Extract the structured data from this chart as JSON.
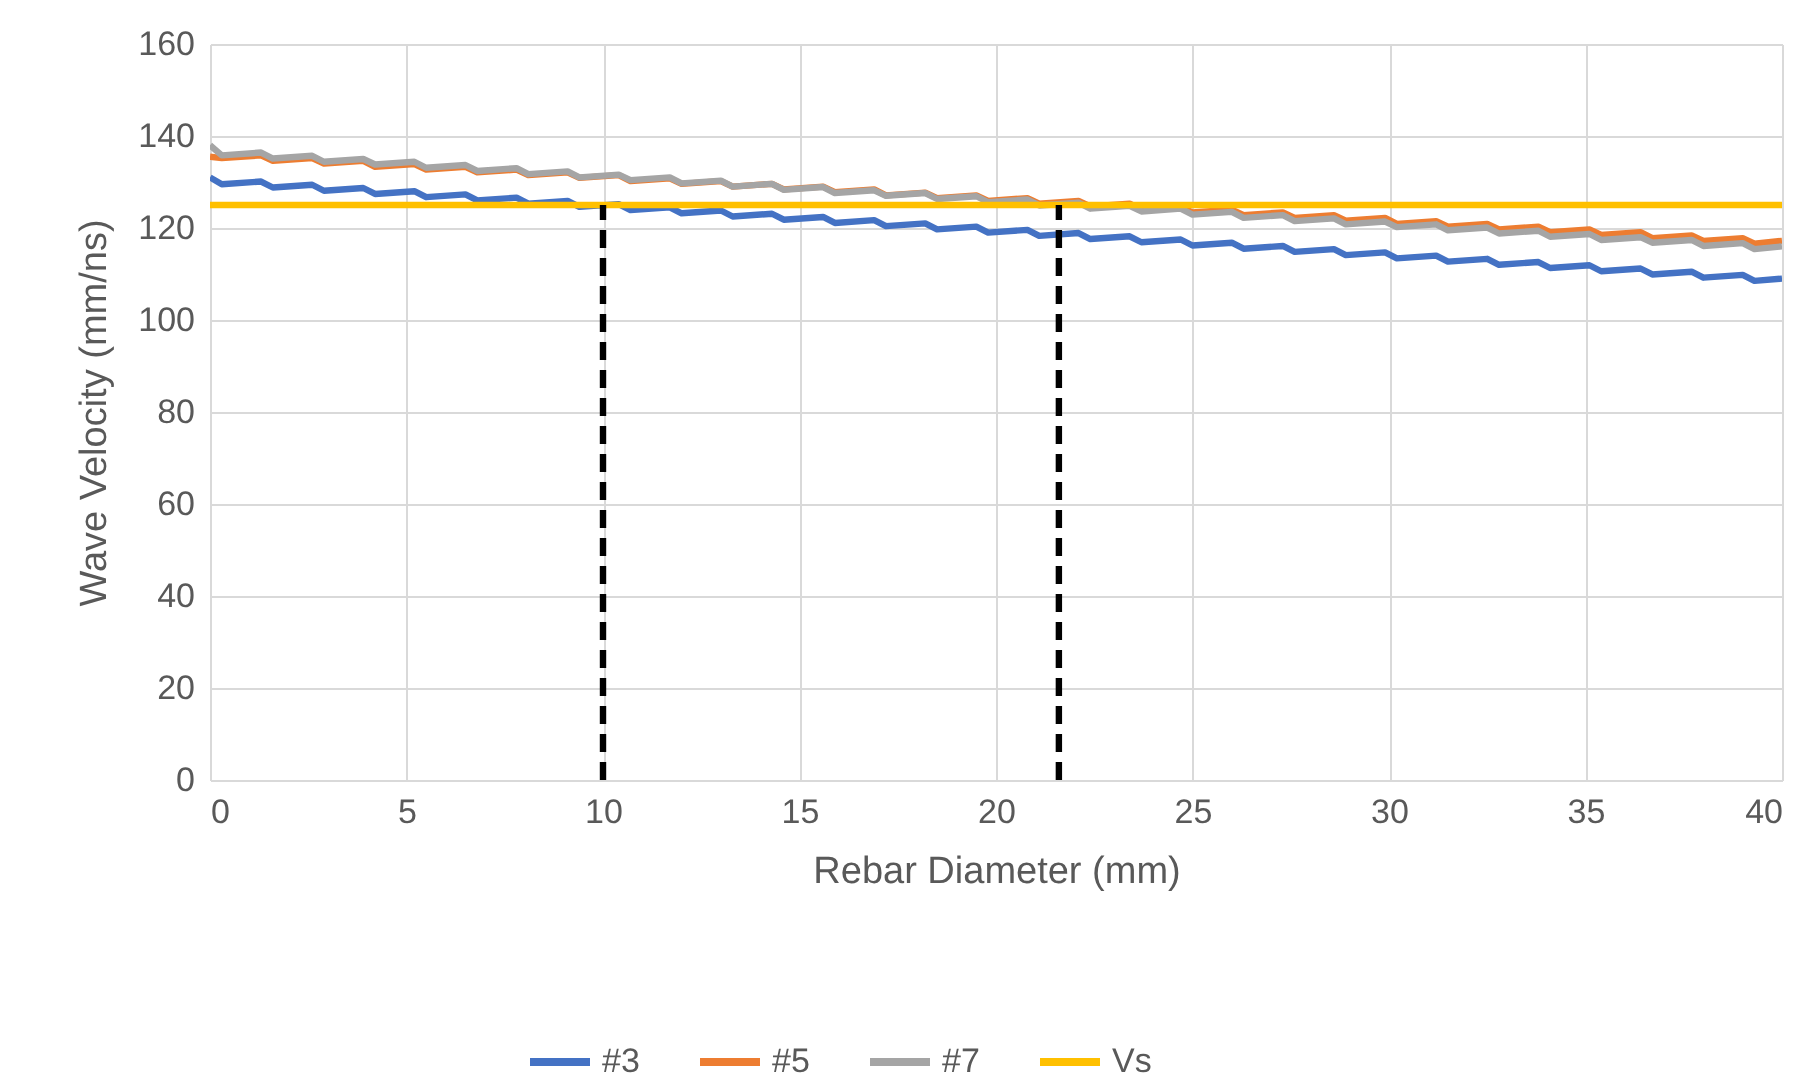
{
  "chart_data": {
    "type": "line",
    "xlabel": "Rebar Diameter (mm)",
    "ylabel": "Wave Velocity (mm/ns)",
    "xlim": [
      0,
      40
    ],
    "xticks": [
      0,
      5,
      10,
      15,
      20,
      25,
      30,
      35,
      40
    ],
    "ylim": [
      0,
      160
    ],
    "yticks": [
      0,
      20,
      40,
      60,
      80,
      100,
      120,
      140,
      160
    ],
    "grid": true,
    "legend": "bottom",
    "line_style": "solid",
    "x": [
      0,
      0.3,
      1.3,
      1.6,
      2.6,
      2.9,
      3.9,
      4.2,
      5.2,
      5.5,
      6.5,
      6.8,
      7.8,
      8.1,
      9.1,
      9.4,
      10.4,
      10.7,
      11.7,
      12,
      13,
      13.3,
      14.3,
      14.6,
      15.6,
      15.9,
      16.9,
      17.2,
      18.2,
      18.5,
      19.5,
      19.8,
      20.8,
      21.1,
      22.1,
      22.4,
      23.4,
      23.7,
      24.7,
      25,
      26,
      26.3,
      27.3,
      27.6,
      28.6,
      28.9,
      29.9,
      30.2,
      31.2,
      31.5,
      32.5,
      32.8,
      33.8,
      34.1,
      35.1,
      35.4,
      36.4,
      36.7,
      37.7,
      38,
      39,
      39.3,
      40
    ],
    "series": [
      {
        "name": "#3",
        "color": "#4472c4",
        "values": [
          131,
          129.5,
          130.1,
          128.8,
          129.4,
          128.1,
          128.7,
          127.4,
          128.0,
          126.7,
          127.3,
          126.0,
          126.6,
          125.3,
          125.9,
          124.6,
          125.2,
          123.9,
          124.5,
          123.2,
          123.8,
          122.5,
          123.1,
          121.8,
          122.4,
          121.1,
          121.7,
          120.4,
          121.0,
          119.7,
          120.3,
          119.0,
          119.6,
          118.3,
          118.9,
          117.6,
          118.2,
          116.9,
          117.5,
          116.2,
          116.8,
          115.5,
          116.1,
          114.8,
          115.4,
          114.1,
          114.7,
          113.4,
          114.0,
          112.7,
          113.3,
          112.0,
          112.6,
          111.3,
          111.9,
          110.6,
          111.2,
          109.9,
          110.5,
          109.2,
          109.8,
          108.5,
          109.0
        ]
      },
      {
        "name": "#5",
        "color": "#ed7d31",
        "values": [
          135.5,
          135.2,
          135.8,
          134.6,
          135.2,
          134.0,
          134.6,
          133.3,
          133.9,
          132.7,
          133.3,
          132.1,
          132.7,
          131.5,
          132.1,
          130.9,
          131.5,
          130.2,
          130.8,
          129.6,
          130.2,
          129.0,
          129.6,
          128.4,
          129.0,
          127.8,
          128.4,
          127.1,
          127.7,
          126.5,
          127.1,
          125.9,
          126.5,
          125.3,
          125.9,
          124.7,
          125.3,
          124.0,
          124.6,
          123.4,
          124.0,
          122.8,
          123.4,
          122.2,
          122.8,
          121.6,
          122.2,
          120.9,
          121.5,
          120.3,
          120.9,
          119.7,
          120.3,
          119.1,
          119.7,
          118.5,
          119.1,
          117.8,
          118.4,
          117.2,
          117.8,
          116.6,
          117.2
        ]
      },
      {
        "name": "#7",
        "color": "#a5a5a5",
        "values": [
          138,
          135.8,
          136.4,
          135.1,
          135.7,
          134.4,
          135.0,
          133.8,
          134.4,
          133.1,
          133.7,
          132.4,
          133.0,
          131.7,
          132.3,
          131.0,
          131.6,
          130.4,
          131.0,
          129.7,
          130.3,
          129.0,
          129.6,
          128.3,
          128.9,
          127.6,
          128.2,
          127.0,
          127.6,
          126.3,
          126.9,
          125.6,
          126.2,
          124.9,
          125.5,
          124.2,
          124.8,
          123.6,
          124.2,
          122.9,
          123.5,
          122.2,
          122.8,
          121.5,
          122.1,
          120.8,
          121.4,
          120.2,
          120.8,
          119.5,
          120.1,
          118.8,
          119.4,
          118.1,
          118.7,
          117.4,
          118.0,
          116.8,
          117.4,
          116.1,
          116.7,
          115.4,
          116.0
        ]
      },
      {
        "name": "Vs",
        "color": "#ffc000",
        "x": [
          0,
          40
        ],
        "values": [
          125,
          125
        ]
      },
      {
        "color": "#000000",
        "x": [
          10,
          10
        ],
        "values": [
          0,
          125
        ],
        "line_style": "dashed"
      },
      {
        "color": "#000000",
        "x": [
          21.6,
          21.6
        ],
        "values": [
          0,
          125
        ],
        "line_style": "dashed"
      }
    ]
  }
}
